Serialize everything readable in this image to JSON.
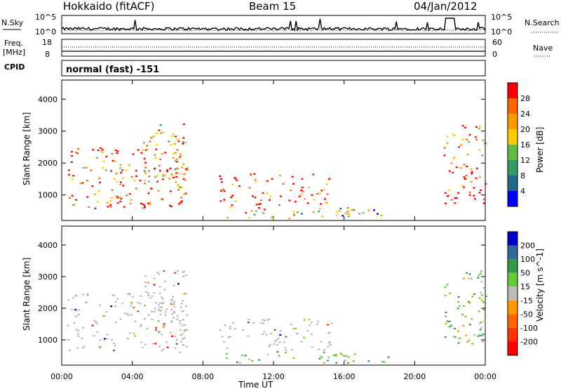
{
  "header": {
    "title": "Hokkaido (fitACF)",
    "beam": "Beam 15",
    "date": "04/Jan/2012"
  },
  "top_panels": {
    "nsky_label": "N.Sky",
    "nsearch_label": "N.Search",
    "nsky_ticks": [
      "10^5",
      "10^0"
    ],
    "nsearch_ticks": [
      "10^5",
      "10^0"
    ],
    "freq_label_line1": "Freq.",
    "freq_label_line2": "[MHz]",
    "freq_ticks": [
      "18",
      "8"
    ],
    "nave_label": "Nave",
    "nave_ticks": [
      "60",
      "0"
    ],
    "cpid_label": "CPID",
    "cpid_value": "normal (fast) -151"
  },
  "chart_data": [
    {
      "type": "heatmap",
      "name_panel": "power",
      "xlabel": "",
      "ylabel": "Slant Range [km]",
      "x_ticks": [
        "00:00",
        "04:00",
        "08:00",
        "12:00",
        "16:00",
        "20:00",
        "00:00"
      ],
      "x_range_hours": [
        0,
        24
      ],
      "y_ticks": [
        1000,
        2000,
        3000,
        4000
      ],
      "ylim": [
        200,
        4600
      ],
      "colorbar": {
        "label": "Power [dB]",
        "ticks": [
          "28",
          "24",
          "20",
          "16",
          "12",
          "8",
          "4"
        ],
        "colors": [
          "#ff0000",
          "#ff6600",
          "#ff9900",
          "#ffcc00",
          "#66bb44",
          "#339966",
          "#226688",
          "#0000ff"
        ]
      },
      "regions": [
        {
          "t0": 0.3,
          "t1": 7.1,
          "r0": 600,
          "r1": 2500,
          "intensity": 0.85
        },
        {
          "t0": 4.6,
          "t1": 7.1,
          "r0": 1100,
          "r1": 3250,
          "intensity": 0.7
        },
        {
          "t0": 8.9,
          "t1": 15.3,
          "r0": 700,
          "r1": 1700,
          "intensity": 0.9
        },
        {
          "t0": 9.2,
          "t1": 16.6,
          "r0": 280,
          "r1": 650,
          "intensity": 0.6
        },
        {
          "t0": 15.3,
          "t1": 18.5,
          "r0": 300,
          "r1": 600,
          "intensity": 0.4
        },
        {
          "t0": 21.6,
          "t1": 24.0,
          "r0": 700,
          "r1": 3200,
          "intensity": 0.85
        }
      ]
    },
    {
      "type": "heatmap",
      "name_panel": "velocity",
      "xlabel": "Time UT",
      "ylabel": "Slant Range [km]",
      "x_ticks": [
        "00:00",
        "04:00",
        "08:00",
        "12:00",
        "16:00",
        "20:00",
        "00:00"
      ],
      "x_range_hours": [
        0,
        24
      ],
      "y_ticks": [
        1000,
        2000,
        3000,
        4000
      ],
      "ylim": [
        200,
        4600
      ],
      "colorbar": {
        "label": "Velocity [m s^-1]",
        "ticks": [
          "200",
          "100",
          "50",
          "15",
          "-15",
          "-50",
          "-100",
          "-200"
        ],
        "colors": [
          "#0000cc",
          "#336699",
          "#339944",
          "#66cc33",
          "#bbbbbb",
          "#ff9900",
          "#ff6600",
          "#ff3300",
          "#ff0000"
        ]
      },
      "regions": [
        {
          "t0": 0.3,
          "t1": 7.1,
          "r0": 600,
          "r1": 2500,
          "vel": "grey"
        },
        {
          "t0": 4.6,
          "t1": 7.1,
          "r0": 1100,
          "r1": 3250,
          "vel": "grey"
        },
        {
          "t0": 8.9,
          "t1": 15.3,
          "r0": 700,
          "r1": 1700,
          "vel": "grey"
        },
        {
          "t0": 9.2,
          "t1": 16.6,
          "r0": 280,
          "r1": 650,
          "vel": "green"
        },
        {
          "t0": 15.3,
          "t1": 18.5,
          "r0": 300,
          "r1": 600,
          "vel": "green"
        },
        {
          "t0": 21.6,
          "t1": 24.0,
          "r0": 700,
          "r1": 3200,
          "vel": "green"
        }
      ]
    }
  ]
}
